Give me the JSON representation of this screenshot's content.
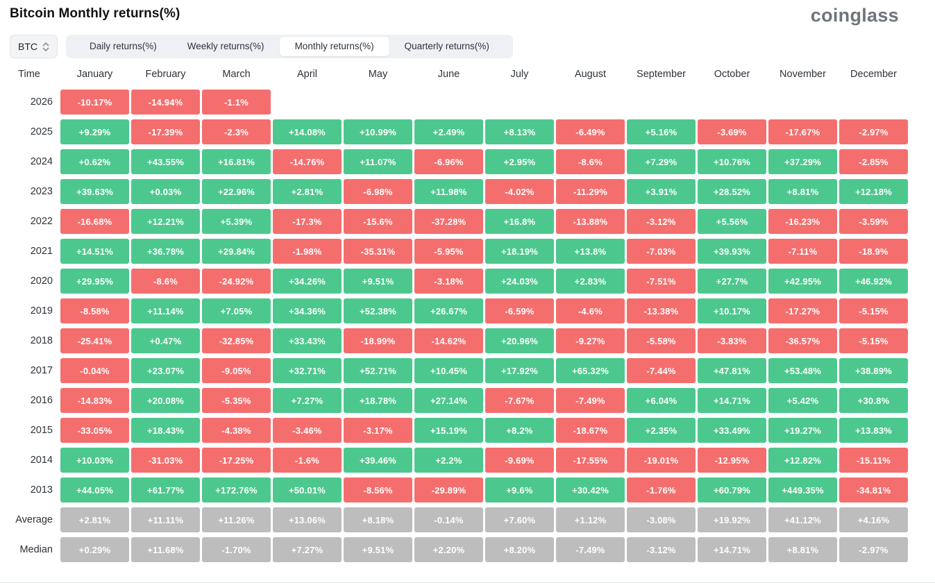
{
  "page": {
    "title": "Bitcoin Monthly returns(%)",
    "logo": "coinglass"
  },
  "toolbar": {
    "symbol": "BTC",
    "symbol_selector_icon": "up-down-chevrons-icon",
    "tabs": [
      {
        "label": "Daily returns(%)",
        "active": false
      },
      {
        "label": "Weekly returns(%)",
        "active": false
      },
      {
        "label": "Monthly returns(%)",
        "active": true
      },
      {
        "label": "Quarterly returns(%)",
        "active": false
      }
    ]
  },
  "colors": {
    "positive": "#4cc88e",
    "negative": "#f56e6e",
    "stat": "#bdbdbd",
    "tabbar_bg": "#eef0f3",
    "active_tab_bg": "#ffffff"
  },
  "chart_data": {
    "type": "heatmap",
    "title": "Bitcoin Monthly returns(%)",
    "time_label": "Time",
    "columns": [
      "January",
      "February",
      "March",
      "April",
      "May",
      "June",
      "July",
      "August",
      "September",
      "October",
      "November",
      "December"
    ],
    "legend": "green = positive monthly return, red = negative monthly return, gray = aggregate statistic rows",
    "rows": [
      {
        "label": "2026",
        "kind": "year",
        "values": [
          "-10.17%",
          "-14.94%",
          "-1.1%",
          null,
          null,
          null,
          null,
          null,
          null,
          null,
          null,
          null
        ]
      },
      {
        "label": "2025",
        "kind": "year",
        "values": [
          "+9.29%",
          "-17.39%",
          "-2.3%",
          "+14.08%",
          "+10.99%",
          "+2.49%",
          "+8.13%",
          "-6.49%",
          "+5.16%",
          "-3.69%",
          "-17.67%",
          "-2.97%"
        ]
      },
      {
        "label": "2024",
        "kind": "year",
        "values": [
          "+0.62%",
          "+43.55%",
          "+16.81%",
          "-14.76%",
          "+11.07%",
          "-6.96%",
          "+2.95%",
          "-8.6%",
          "+7.29%",
          "+10.76%",
          "+37.29%",
          "-2.85%"
        ]
      },
      {
        "label": "2023",
        "kind": "year",
        "values": [
          "+39.63%",
          "+0.03%",
          "+22.96%",
          "+2.81%",
          "-6.98%",
          "+11.98%",
          "-4.02%",
          "-11.29%",
          "+3.91%",
          "+28.52%",
          "+8.81%",
          "+12.18%"
        ]
      },
      {
        "label": "2022",
        "kind": "year",
        "values": [
          "-16.68%",
          "+12.21%",
          "+5.39%",
          "-17.3%",
          "-15.6%",
          "-37.28%",
          "+16.8%",
          "-13.88%",
          "-3.12%",
          "+5.56%",
          "-16.23%",
          "-3.59%"
        ]
      },
      {
        "label": "2021",
        "kind": "year",
        "values": [
          "+14.51%",
          "+36.78%",
          "+29.84%",
          "-1.98%",
          "-35.31%",
          "-5.95%",
          "+18.19%",
          "+13.8%",
          "-7.03%",
          "+39.93%",
          "-7.11%",
          "-18.9%"
        ]
      },
      {
        "label": "2020",
        "kind": "year",
        "values": [
          "+29.95%",
          "-8.6%",
          "-24.92%",
          "+34.26%",
          "+9.51%",
          "-3.18%",
          "+24.03%",
          "+2.83%",
          "-7.51%",
          "+27.7%",
          "+42.95%",
          "+46.92%"
        ]
      },
      {
        "label": "2019",
        "kind": "year",
        "values": [
          "-8.58%",
          "+11.14%",
          "+7.05%",
          "+34.36%",
          "+52.38%",
          "+26.67%",
          "-6.59%",
          "-4.6%",
          "-13.38%",
          "+10.17%",
          "-17.27%",
          "-5.15%"
        ]
      },
      {
        "label": "2018",
        "kind": "year",
        "values": [
          "-25.41%",
          "+0.47%",
          "-32.85%",
          "+33.43%",
          "-18.99%",
          "-14.62%",
          "+20.96%",
          "-9.27%",
          "-5.58%",
          "-3.83%",
          "-36.57%",
          "-5.15%"
        ]
      },
      {
        "label": "2017",
        "kind": "year",
        "values": [
          "-0.04%",
          "+23.07%",
          "-9.05%",
          "+32.71%",
          "+52.71%",
          "+10.45%",
          "+17.92%",
          "+65.32%",
          "-7.44%",
          "+47.81%",
          "+53.48%",
          "+38.89%"
        ]
      },
      {
        "label": "2016",
        "kind": "year",
        "values": [
          "-14.83%",
          "+20.08%",
          "-5.35%",
          "+7.27%",
          "+18.78%",
          "+27.14%",
          "-7.67%",
          "-7.49%",
          "+6.04%",
          "+14.71%",
          "+5.42%",
          "+30.8%"
        ]
      },
      {
        "label": "2015",
        "kind": "year",
        "values": [
          "-33.05%",
          "+18.43%",
          "-4.38%",
          "-3.46%",
          "-3.17%",
          "+15.19%",
          "+8.2%",
          "-18.67%",
          "+2.35%",
          "+33.49%",
          "+19.27%",
          "+13.83%"
        ]
      },
      {
        "label": "2014",
        "kind": "year",
        "values": [
          "+10.03%",
          "-31.03%",
          "-17.25%",
          "-1.6%",
          "+39.46%",
          "+2.2%",
          "-9.69%",
          "-17.55%",
          "-19.01%",
          "-12.95%",
          "+12.82%",
          "-15.11%"
        ]
      },
      {
        "label": "2013",
        "kind": "year",
        "values": [
          "+44.05%",
          "+61.77%",
          "+172.76%",
          "+50.01%",
          "-8.56%",
          "-29.89%",
          "+9.6%",
          "+30.42%",
          "-1.76%",
          "+60.79%",
          "+449.35%",
          "-34.81%"
        ]
      },
      {
        "label": "Average",
        "kind": "stat",
        "values": [
          "+2.81%",
          "+11.11%",
          "+11.26%",
          "+13.06%",
          "+8.18%",
          "-0.14%",
          "+7.60%",
          "+1.12%",
          "-3.08%",
          "+19.92%",
          "+41.12%",
          "+4.16%"
        ]
      },
      {
        "label": "Median",
        "kind": "stat",
        "values": [
          "+0.29%",
          "+11.68%",
          "-1.70%",
          "+7.27%",
          "+9.51%",
          "+2.20%",
          "+8.20%",
          "-7.49%",
          "-3.12%",
          "+14.71%",
          "+8.81%",
          "-2.97%"
        ]
      }
    ]
  }
}
